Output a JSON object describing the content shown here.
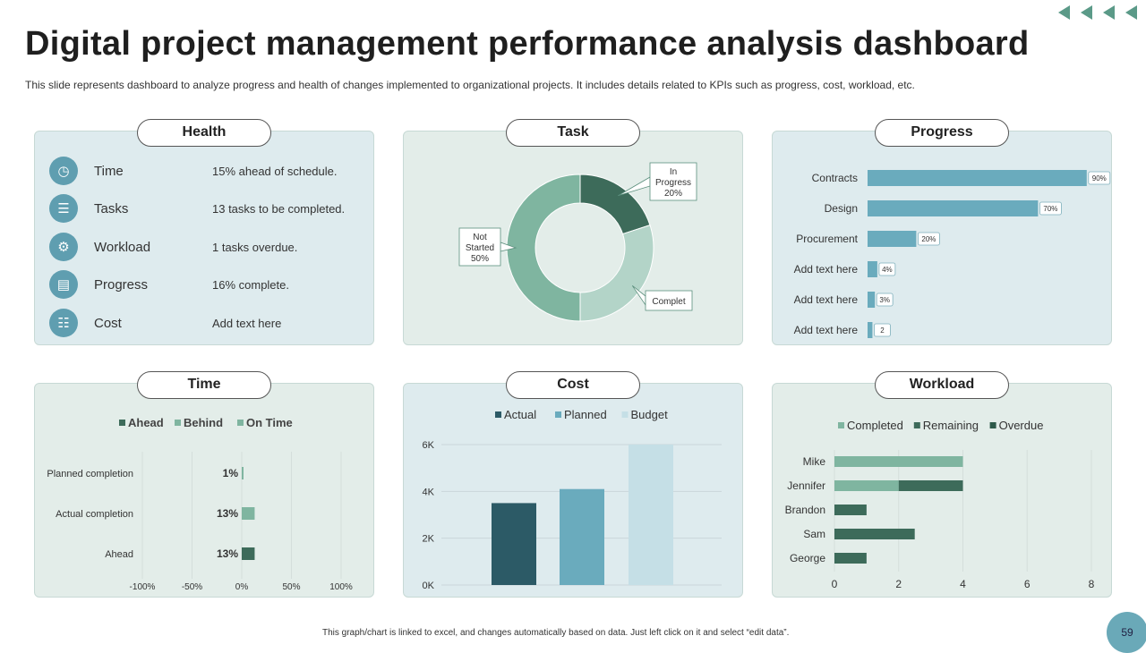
{
  "title": "Digital project management performance analysis dashboard",
  "subtitle": "This slide represents dashboard to analyze progress and health of changes implemented to organizational projects. It includes details related to KPIs such as progress, cost, workload, etc.",
  "footer": "This graph/chart is linked to excel, and changes automatically based on data. Just left click on it and select “edit data”.",
  "page_number": "59",
  "colors": {
    "teal_dark": "#2c5a66",
    "teal": "#6aabbd",
    "teal_light": "#c5dfe6",
    "green_dark": "#3d6b5a",
    "green": "#7fb5a0",
    "green_light": "#b3d4c8"
  },
  "health": {
    "title": "Health",
    "rows": [
      {
        "icon": "clock-icon",
        "label": "Time",
        "value": "15% ahead of schedule."
      },
      {
        "icon": "clipboard-icon",
        "label": "Tasks",
        "value": "13 tasks to be completed."
      },
      {
        "icon": "worker-icon",
        "label": "Workload",
        "value": "1 tasks overdue."
      },
      {
        "icon": "chart-icon",
        "label": "Progress",
        "value": "16% complete."
      },
      {
        "icon": "document-icon",
        "label": "Cost",
        "value": "Add text here"
      }
    ]
  },
  "task": {
    "title": "Task"
  },
  "progress": {
    "title": "Progress"
  },
  "time": {
    "title": "Time"
  },
  "cost": {
    "title": "Cost"
  },
  "workload": {
    "title": "Workload"
  },
  "chart_data": [
    {
      "id": "task",
      "type": "pie",
      "slices": [
        {
          "label": "In Progress",
          "value": 20,
          "text": "20%"
        },
        {
          "label": "Complet",
          "value": 30,
          "text": ""
        },
        {
          "label": "Not Started",
          "value": 50,
          "text": "50%"
        }
      ]
    },
    {
      "id": "progress",
      "type": "bar",
      "categories": [
        "Contracts",
        "Design",
        "Procurement",
        "Add text here",
        "Add text here",
        "Add text here"
      ],
      "values": [
        90,
        70,
        20,
        4,
        3,
        2
      ],
      "labels": [
        "90%",
        "70%",
        "20%",
        "4%",
        "3%",
        "2"
      ],
      "xlim": [
        0,
        100
      ]
    },
    {
      "id": "time",
      "type": "bar",
      "legend": [
        "Ahead",
        "Behind",
        "On Time"
      ],
      "categories": [
        "Planned completion",
        "Actual completion",
        "Ahead"
      ],
      "values": [
        1,
        13,
        13
      ],
      "labels": [
        "1%",
        "13%",
        "13%"
      ],
      "xticks": [
        "-100%",
        "-50%",
        "0%",
        "50%",
        "100%"
      ],
      "xlim": [
        -100,
        100
      ]
    },
    {
      "id": "cost",
      "type": "bar",
      "series": [
        {
          "name": "Actual",
          "values": [
            3500
          ]
        },
        {
          "name": "Planned",
          "values": [
            4100
          ]
        },
        {
          "name": "Budget",
          "values": [
            6000
          ]
        }
      ],
      "yticks": [
        "0K",
        "2K",
        "4K",
        "6K"
      ],
      "ylim": [
        0,
        6000
      ]
    },
    {
      "id": "workload",
      "type": "bar",
      "categories": [
        "Mike",
        "Jennifer",
        "Brandon",
        "Sam",
        "George"
      ],
      "series": [
        {
          "name": "Completed",
          "values": [
            4,
            2,
            0,
            0,
            0
          ]
        },
        {
          "name": "Remaining",
          "values": [
            0,
            2,
            1,
            2.5,
            1
          ]
        },
        {
          "name": "Overdue",
          "values": [
            0,
            0,
            0,
            0,
            0
          ]
        }
      ],
      "xticks": [
        "0",
        "2",
        "4",
        "6",
        "8"
      ],
      "xlim": [
        0,
        8
      ]
    }
  ]
}
